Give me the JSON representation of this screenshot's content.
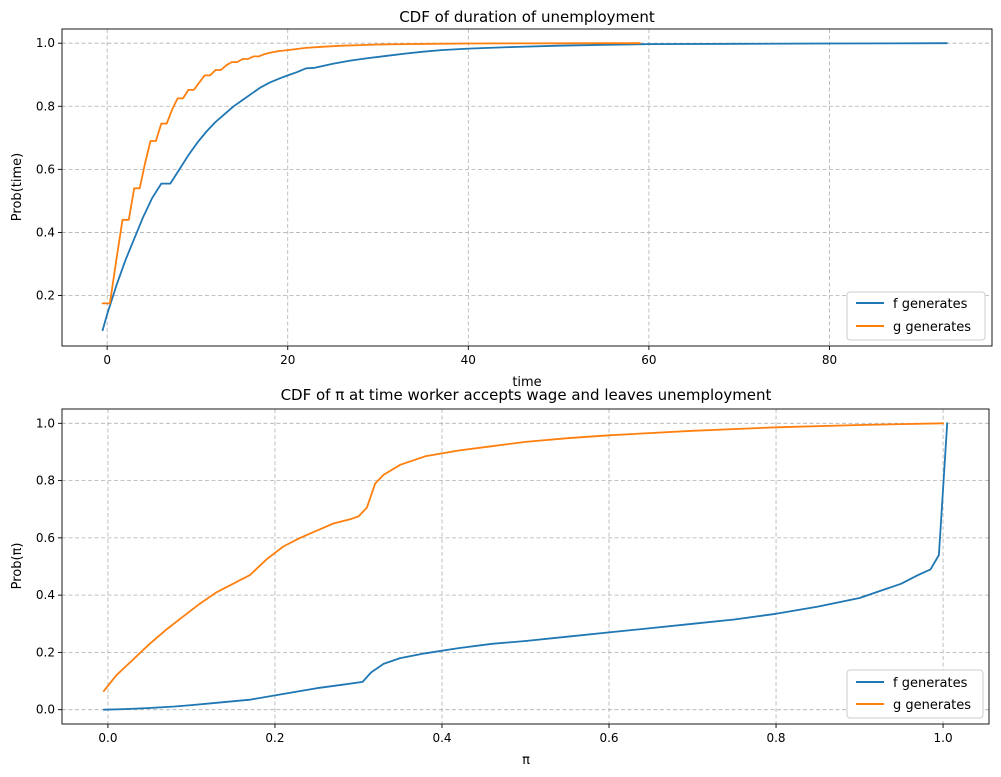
{
  "figure": {
    "colors": {
      "f": "#1f77b4",
      "g": "#ff7f0e"
    }
  },
  "chart_data": [
    {
      "type": "line",
      "title": "CDF of duration of unemployment",
      "xlabel": "time",
      "ylabel": "Prob(time)",
      "xlim": [
        -5,
        98
      ],
      "ylim": [
        0.04,
        1.045
      ],
      "xticks": [
        0,
        20,
        40,
        60,
        80
      ],
      "xtick_labels": [
        "0",
        "20",
        "40",
        "60",
        "80"
      ],
      "yticks": [
        0.2,
        0.4,
        0.6,
        0.8,
        1.0
      ],
      "ytick_labels": [
        "0.2",
        "0.4",
        "0.6",
        "0.8",
        "1.0"
      ],
      "grid": true,
      "legend_position": "lower-right",
      "series": [
        {
          "name": "f generates",
          "color": "#1f77b4",
          "x": [
            -0.5,
            0,
            1,
            2,
            3,
            4,
            5,
            6,
            7,
            8,
            9,
            10,
            11,
            12,
            13,
            14,
            15,
            16,
            17,
            18,
            19,
            20,
            21,
            22,
            23,
            25,
            27,
            29,
            31,
            33,
            35,
            37,
            40,
            45,
            50,
            55,
            60,
            70,
            80,
            93
          ],
          "y": [
            0.09,
            0.14,
            0.23,
            0.31,
            0.38,
            0.45,
            0.51,
            0.555,
            0.555,
            0.6,
            0.645,
            0.685,
            0.72,
            0.75,
            0.775,
            0.8,
            0.82,
            0.84,
            0.86,
            0.875,
            0.887,
            0.898,
            0.908,
            0.92,
            0.922,
            0.935,
            0.945,
            0.953,
            0.96,
            0.967,
            0.973,
            0.978,
            0.983,
            0.988,
            0.992,
            0.995,
            0.997,
            0.998,
            0.999,
            1.0
          ]
        },
        {
          "name": "g generates",
          "color": "#ff7f0e",
          "x": [
            -0.5,
            0.3,
            1,
            1.7,
            2.4,
            3,
            3.6,
            4.2,
            4.8,
            5.4,
            6,
            6.6,
            7.2,
            7.8,
            8.4,
            9,
            9.6,
            10.2,
            10.8,
            11.4,
            12,
            12.6,
            13.2,
            13.8,
            14.4,
            15,
            15.6,
            16.2,
            16.8,
            17.4,
            18,
            19,
            20,
            22,
            24,
            26,
            28,
            30,
            33,
            36,
            40,
            45,
            50,
            55,
            59
          ],
          "y": [
            0.175,
            0.175,
            0.31,
            0.44,
            0.44,
            0.54,
            0.54,
            0.62,
            0.69,
            0.69,
            0.745,
            0.745,
            0.79,
            0.825,
            0.825,
            0.852,
            0.852,
            0.875,
            0.898,
            0.898,
            0.915,
            0.915,
            0.93,
            0.94,
            0.94,
            0.95,
            0.95,
            0.958,
            0.958,
            0.965,
            0.97,
            0.975,
            0.978,
            0.985,
            0.989,
            0.992,
            0.994,
            0.996,
            0.997,
            0.998,
            0.999,
            0.9995,
            0.9998,
            0.9999,
            1.0
          ]
        }
      ]
    },
    {
      "type": "line",
      "title": "CDF of π at time worker accepts wage and leaves unemployment",
      "xlabel": "π",
      "ylabel": "Prob(π)",
      "xlim": [
        -0.055,
        1.055
      ],
      "ylim": [
        -0.05,
        1.05
      ],
      "xticks": [
        0.0,
        0.2,
        0.4,
        0.6,
        0.8,
        1.0
      ],
      "xtick_labels": [
        "0.0",
        "0.2",
        "0.4",
        "0.6",
        "0.8",
        "1.0"
      ],
      "yticks": [
        0.0,
        0.2,
        0.4,
        0.6,
        0.8,
        1.0
      ],
      "ytick_labels": [
        "0.0",
        "0.2",
        "0.4",
        "0.6",
        "0.8",
        "1.0"
      ],
      "grid": true,
      "legend_position": "lower-right",
      "series": [
        {
          "name": "f generates",
          "color": "#1f77b4",
          "x": [
            -0.005,
            0.02,
            0.05,
            0.08,
            0.1,
            0.13,
            0.17,
            0.2,
            0.22,
            0.25,
            0.28,
            0.305,
            0.315,
            0.33,
            0.35,
            0.38,
            0.42,
            0.46,
            0.5,
            0.55,
            0.6,
            0.65,
            0.7,
            0.75,
            0.8,
            0.85,
            0.9,
            0.93,
            0.95,
            0.97,
            0.985,
            0.995,
            1.005
          ],
          "y": [
            0.0,
            0.002,
            0.006,
            0.011,
            0.016,
            0.024,
            0.035,
            0.05,
            0.06,
            0.075,
            0.087,
            0.097,
            0.13,
            0.16,
            0.18,
            0.197,
            0.215,
            0.23,
            0.24,
            0.255,
            0.27,
            0.285,
            0.3,
            0.315,
            0.335,
            0.36,
            0.39,
            0.42,
            0.44,
            0.47,
            0.49,
            0.54,
            1.0
          ]
        },
        {
          "name": "g generates",
          "color": "#ff7f0e",
          "x": [
            -0.005,
            0.01,
            0.03,
            0.05,
            0.07,
            0.09,
            0.11,
            0.13,
            0.15,
            0.17,
            0.19,
            0.21,
            0.23,
            0.25,
            0.27,
            0.29,
            0.3,
            0.31,
            0.32,
            0.33,
            0.35,
            0.38,
            0.42,
            0.46,
            0.5,
            0.55,
            0.6,
            0.7,
            0.8,
            0.9,
            1.0
          ],
          "y": [
            0.065,
            0.12,
            0.175,
            0.23,
            0.28,
            0.325,
            0.37,
            0.41,
            0.44,
            0.47,
            0.525,
            0.57,
            0.6,
            0.625,
            0.65,
            0.665,
            0.675,
            0.705,
            0.79,
            0.82,
            0.855,
            0.885,
            0.905,
            0.92,
            0.935,
            0.948,
            0.958,
            0.974,
            0.986,
            0.994,
            1.0
          ]
        }
      ]
    }
  ]
}
